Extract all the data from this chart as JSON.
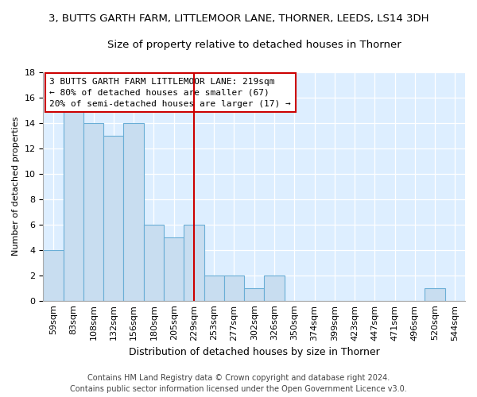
{
  "title": "3, BUTTS GARTH FARM, LITTLEMOOR LANE, THORNER, LEEDS, LS14 3DH",
  "subtitle": "Size of property relative to detached houses in Thorner",
  "xlabel": "Distribution of detached houses by size in Thorner",
  "ylabel": "Number of detached properties",
  "categories": [
    "59sqm",
    "83sqm",
    "108sqm",
    "132sqm",
    "156sqm",
    "180sqm",
    "205sqm",
    "229sqm",
    "253sqm",
    "277sqm",
    "302sqm",
    "326sqm",
    "350sqm",
    "374sqm",
    "399sqm",
    "423sqm",
    "447sqm",
    "471sqm",
    "496sqm",
    "520sqm",
    "544sqm"
  ],
  "values": [
    4,
    15,
    14,
    13,
    14,
    6,
    5,
    6,
    2,
    2,
    1,
    2,
    0,
    0,
    0,
    0,
    0,
    0,
    0,
    1,
    0
  ],
  "bar_color": "#c8ddf0",
  "bar_edge_color": "#6aaed6",
  "vline_index": 7,
  "annotation_lines": [
    "3 BUTTS GARTH FARM LITTLEMOOR LANE: 219sqm",
    "← 80% of detached houses are smaller (67)",
    "20% of semi-detached houses are larger (17) →"
  ],
  "ylim": [
    0,
    18
  ],
  "yticks": [
    0,
    2,
    4,
    6,
    8,
    10,
    12,
    14,
    16,
    18
  ],
  "vline_color": "#cc0000",
  "footer_line1": "Contains HM Land Registry data © Crown copyright and database right 2024.",
  "footer_line2": "Contains public sector information licensed under the Open Government Licence v3.0.",
  "fig_bg_color": "#ffffff",
  "plot_bg_color": "#ddeeff",
  "title_fontsize": 9.5,
  "subtitle_fontsize": 9.5,
  "xlabel_fontsize": 9,
  "ylabel_fontsize": 8,
  "tick_fontsize": 8,
  "footer_fontsize": 7,
  "annot_fontsize": 8
}
